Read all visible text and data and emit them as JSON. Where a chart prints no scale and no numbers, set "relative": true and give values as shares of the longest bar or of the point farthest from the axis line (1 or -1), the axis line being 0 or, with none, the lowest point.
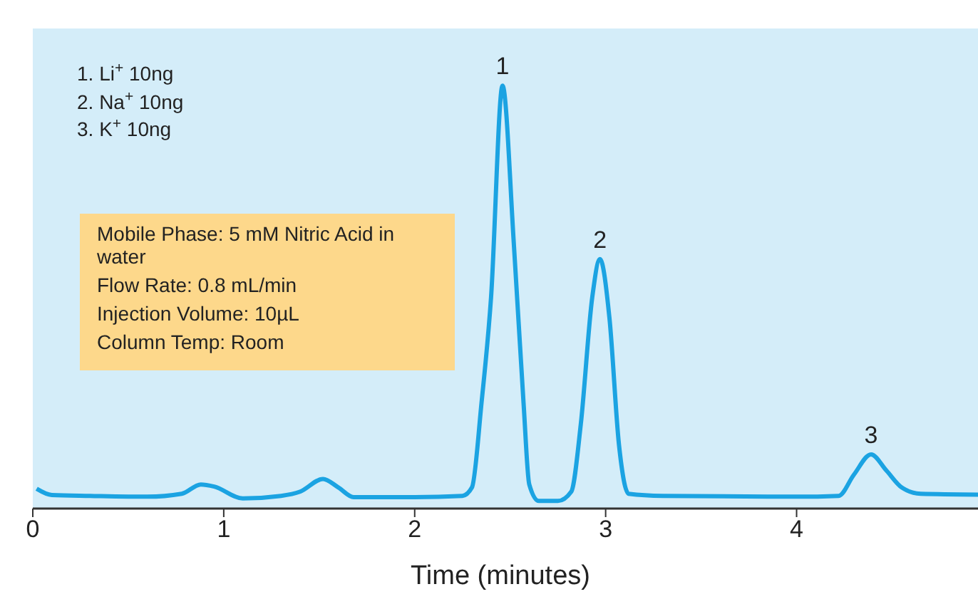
{
  "chart_data": {
    "type": "line",
    "xlabel": "Time (minutes)",
    "relative": true,
    "xlim": [
      0,
      4.95
    ],
    "xticks": [
      0,
      1,
      2,
      3,
      4
    ],
    "marker": "none",
    "line_style": "solid",
    "series": [
      {
        "color": "#1ba3e2",
        "x": [
          0.02,
          0.1,
          0.3,
          0.6,
          0.78,
          0.88,
          0.95,
          1.1,
          1.3,
          1.4,
          1.52,
          1.6,
          1.68,
          2.0,
          2.25,
          2.3,
          2.35,
          2.4,
          2.46,
          2.52,
          2.57,
          2.6,
          2.65,
          2.75,
          2.82,
          2.87,
          2.93,
          2.97,
          3.02,
          3.07,
          3.12,
          3.3,
          4.0,
          4.22,
          4.3,
          4.39,
          4.47,
          4.55,
          4.65,
          4.95
        ],
        "values": [
          0.047,
          0.032,
          0.03,
          0.028,
          0.035,
          0.057,
          0.052,
          0.024,
          0.03,
          0.04,
          0.07,
          0.05,
          0.027,
          0.027,
          0.03,
          0.05,
          0.25,
          0.5,
          1.0,
          0.62,
          0.25,
          0.057,
          0.018,
          0.018,
          0.04,
          0.2,
          0.5,
          0.59,
          0.45,
          0.15,
          0.035,
          0.03,
          0.028,
          0.03,
          0.08,
          0.128,
          0.09,
          0.05,
          0.035,
          0.033
        ]
      }
    ],
    "annotations": [
      "1. Li$^{+}$ 10ng",
      "2. Na$^{+}$ 10ng",
      "3. K$^{+}$ 10ng",
      "Mobile Phase: 5 mM Nitric Acid in water",
      "Flow Rate: 0.8 mL/min",
      "Injection Volume: 10µL",
      "Column Temp: Room",
      {
        "text": "1",
        "x": 2.46,
        "y": 1.0
      },
      {
        "text": "2",
        "x": 2.97,
        "y": 0.59
      },
      {
        "text": "3",
        "x": 4.39,
        "y": 0.128
      }
    ]
  }
}
